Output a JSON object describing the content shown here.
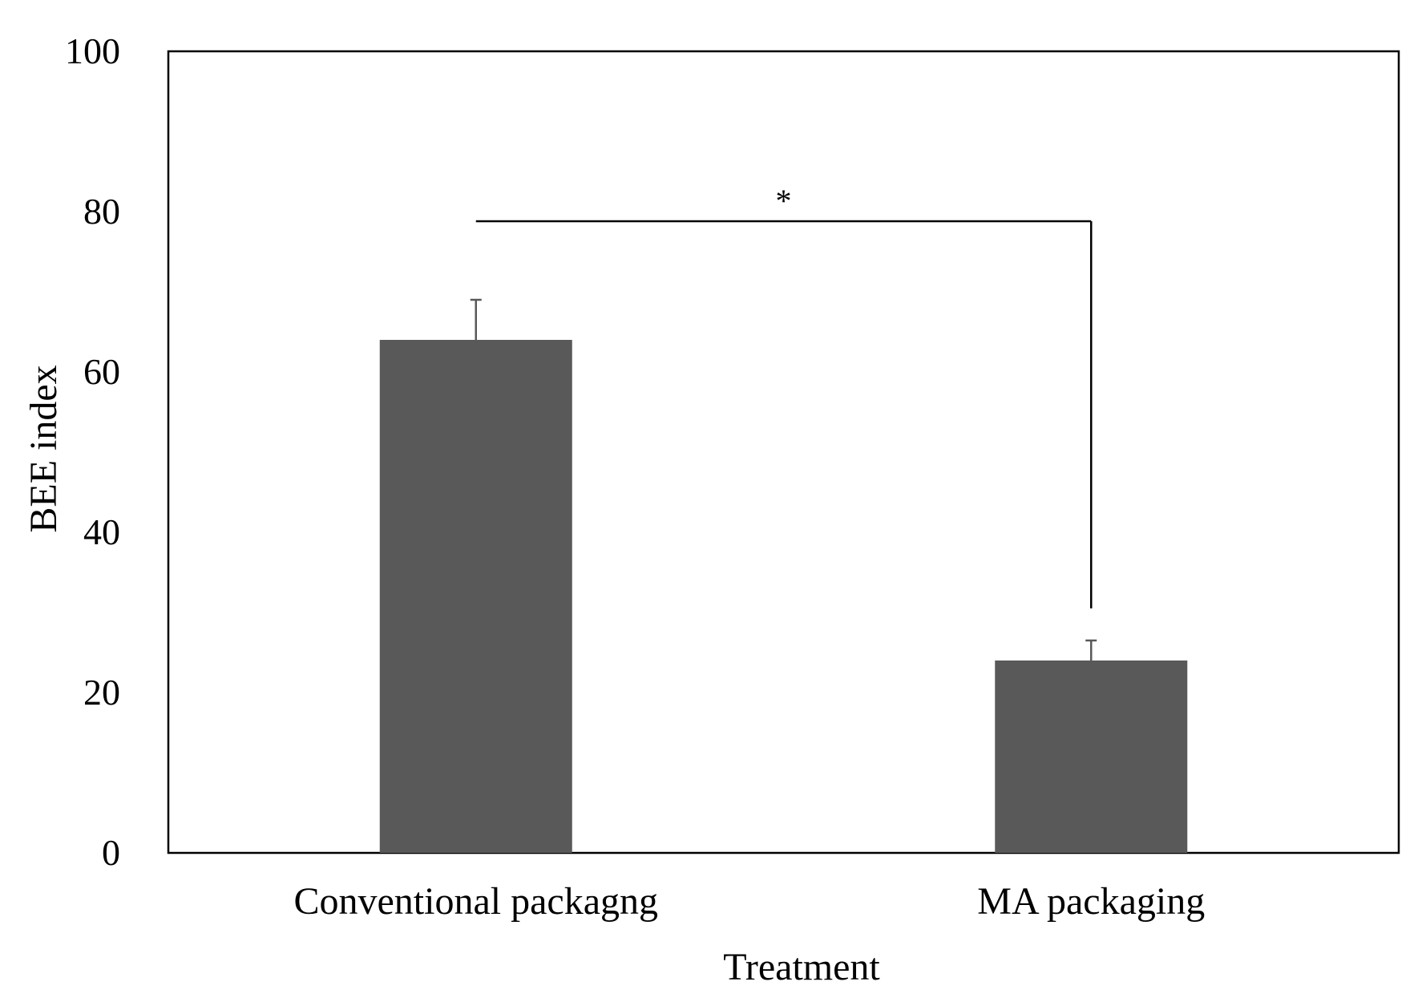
{
  "chart_data": {
    "type": "bar",
    "title": "",
    "xlabel": "Treatment",
    "ylabel": "BEE index",
    "categories": [
      "Conventional packagng",
      "MA packaging"
    ],
    "values": [
      64,
      24
    ],
    "error_upper": [
      5,
      2.5
    ],
    "ylim": [
      0,
      100
    ],
    "yticks": [
      "0",
      "20",
      "40",
      "60",
      "80",
      "100"
    ],
    "grid": false,
    "legend": "none",
    "significance": {
      "label": "*",
      "between": [
        "Conventional packagng",
        "MA packaging"
      ],
      "bracket_y": 78.8,
      "drop_to": 30.5
    },
    "bar_color": "#595959",
    "axis_color": "#000000"
  }
}
